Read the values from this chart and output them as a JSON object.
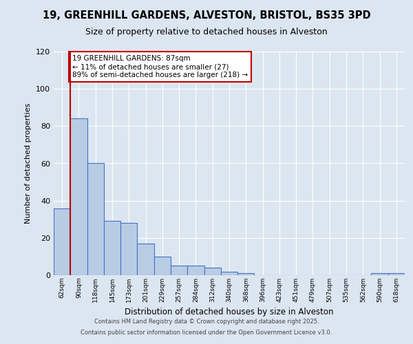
{
  "title_line1": "19, GREENHILL GARDENS, ALVESTON, BRISTOL, BS35 3PD",
  "title_line2": "Size of property relative to detached houses in Alveston",
  "xlabel": "Distribution of detached houses by size in Alveston",
  "ylabel": "Number of detached properties",
  "bar_labels": [
    "62sqm",
    "90sqm",
    "118sqm",
    "145sqm",
    "173sqm",
    "201sqm",
    "229sqm",
    "257sqm",
    "284sqm",
    "312sqm",
    "340sqm",
    "368sqm",
    "396sqm",
    "423sqm",
    "451sqm",
    "479sqm",
    "507sqm",
    "535sqm",
    "562sqm",
    "590sqm",
    "618sqm"
  ],
  "bar_values": [
    36,
    84,
    60,
    29,
    28,
    17,
    10,
    5,
    5,
    4,
    2,
    1,
    0,
    0,
    0,
    0,
    0,
    0,
    0,
    1,
    1
  ],
  "bar_color": "#b8cce4",
  "bar_edge_color": "#4472c4",
  "background_color": "#dce6f1",
  "plot_bg_color": "#dce6f1",
  "marker_color": "#c00000",
  "annotation_text": "19 GREENHILL GARDENS: 87sqm\n← 11% of detached houses are smaller (27)\n89% of semi-detached houses are larger (218) →",
  "annotation_box_color": "#ffffff",
  "annotation_border_color": "#c00000",
  "footer_line1": "Contains HM Land Registry data © Crown copyright and database right 2025.",
  "footer_line2": "Contains public sector information licensed under the Open Government Licence v3.0.",
  "ylim": [
    0,
    120
  ],
  "yticks": [
    0,
    20,
    40,
    60,
    80,
    100,
    120
  ]
}
